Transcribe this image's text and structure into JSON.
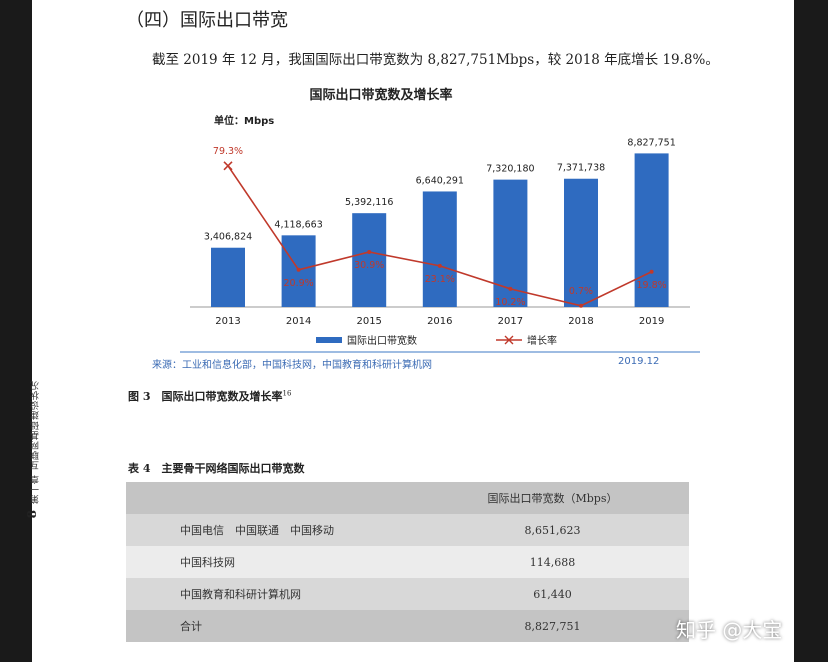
{
  "margin": {
    "chapter": "第一章 互联网基础建设状况",
    "page_number": "8"
  },
  "section_title": "（四）国际出口带宽",
  "paragraph": "截至 2019 年 12 月，我国国际出口带宽数为 8,827,751Mbps，较 2018 年底增长 19.8%。",
  "chart_data": {
    "type": "bar",
    "title": "国际出口带宽数及增长率",
    "unit_label": "单位：Mbps",
    "categories": [
      "2013",
      "2014",
      "2015",
      "2016",
      "2017",
      "2018",
      "2019"
    ],
    "series": [
      {
        "name": "国际出口带宽数",
        "type": "bar",
        "values": [
          3406824,
          4118663,
          5392116,
          6640291,
          7320180,
          7371738,
          8827751
        ],
        "labels": [
          "3,406,824",
          "4,118,663",
          "5,392,116",
          "6,640,291",
          "7,320,180",
          "7,371,738",
          "8,827,751"
        ],
        "color": "#2f6bc0"
      },
      {
        "name": "增长率",
        "type": "line",
        "values": [
          79.3,
          20.9,
          30.9,
          23.1,
          10.2,
          0.7,
          19.8
        ],
        "labels": [
          "79.3%",
          "20.9%",
          "30.9%",
          "23.1%",
          "10.2%",
          "0.7%",
          "19.8%"
        ],
        "color": "#c0392b"
      }
    ],
    "legend_position": "bottom",
    "grid": false
  },
  "source": {
    "text": "来源：工业和信息化部，中国科技网，中国教育和科研计算机网",
    "date": "2019.12"
  },
  "figure_caption": {
    "text": "图 3　国际出口带宽数及增长率",
    "ref": "16"
  },
  "table": {
    "caption": "表 4　主要骨干网络国际出口带宽数",
    "header": [
      "",
      "国际出口带宽数（Mbps）"
    ],
    "rows": [
      {
        "name": "中国电信　中国联通　中国移动",
        "value": "8,651,623"
      },
      {
        "name": "中国科技网",
        "value": "114,688"
      },
      {
        "name": "中国教育和科研计算机网",
        "value": "61,440"
      },
      {
        "name": "合计",
        "value": "8,827,751"
      }
    ]
  },
  "watermark": "知乎 @大宝"
}
